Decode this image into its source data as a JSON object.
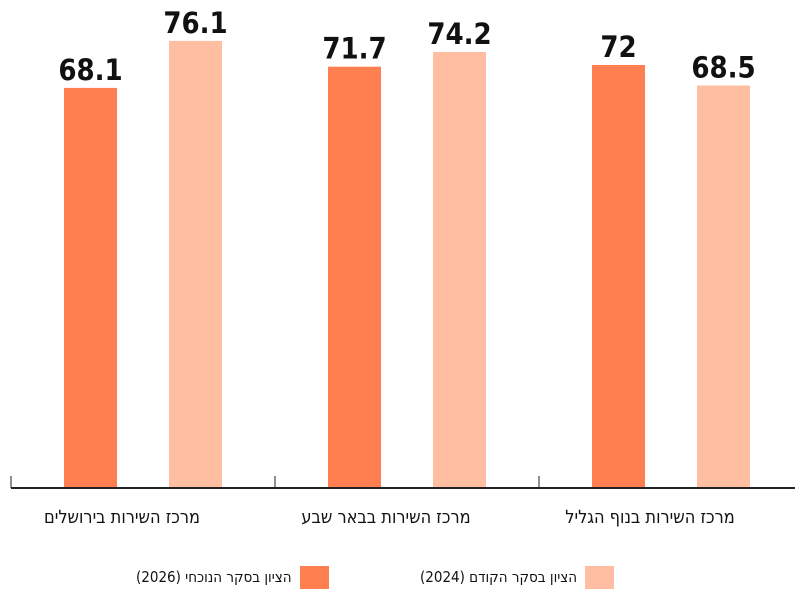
{
  "chart_data": {
    "type": "bar",
    "categories": [
      "מרכז השירות בירושלים",
      "מרכז השירות בבאר שבע",
      "מרכז השירות בנוף הגליל"
    ],
    "series": [
      {
        "name": "הציון בסקר הנוכחי (2026)",
        "values": [
          68.1,
          71.7,
          72
        ],
        "labels": [
          "68.1",
          "71.7",
          "72"
        ],
        "color": "#ff7f50"
      },
      {
        "name": "הציון בסקר הקודם (2024)",
        "values": [
          76.1,
          74.2,
          68.5
        ],
        "labels": [
          "76.1",
          "74.2",
          "68.5"
        ],
        "color": "#ffbea1"
      }
    ],
    "ylim": [
      0,
      78.8
    ],
    "grid": false,
    "legend_position": "bottom"
  }
}
